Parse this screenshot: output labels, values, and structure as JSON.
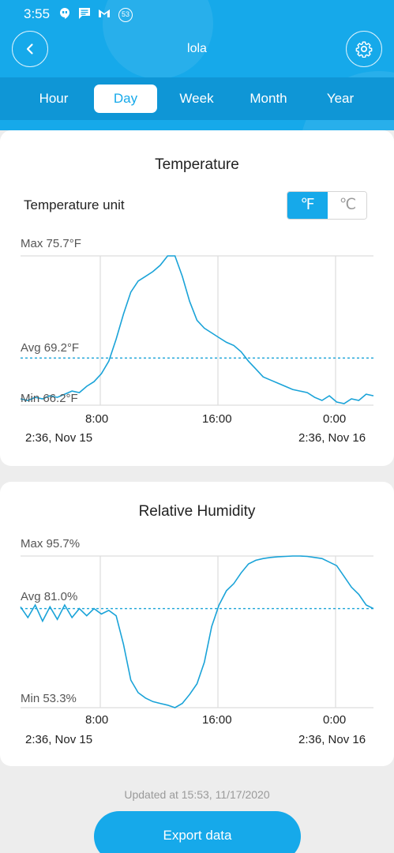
{
  "status_bar": {
    "time": "3:55",
    "icons": [
      "hangouts-icon",
      "message-icon",
      "gmail-icon"
    ],
    "notification_count": "53"
  },
  "header": {
    "title": "lola",
    "back_icon": "chevron-left-icon",
    "settings_icon": "gear-icon"
  },
  "tabs": [
    {
      "label": "Hour",
      "active": false
    },
    {
      "label": "Day",
      "active": true
    },
    {
      "label": "Week",
      "active": false
    },
    {
      "label": "Month",
      "active": false
    },
    {
      "label": "Year",
      "active": false
    }
  ],
  "temperature_card": {
    "title": "Temperature",
    "unit_label": "Temperature unit",
    "unit_fahrenheit": "℉",
    "unit_celsius": "℃",
    "selected_unit": "℉",
    "max_label": "Max 75.7°F",
    "avg_label": "Avg 69.2°F",
    "min_label": "Min 66.2°F",
    "ticks": [
      "8:00",
      "16:00",
      "0:00"
    ],
    "start_label": "2:36, Nov 15",
    "end_label": "2:36, Nov 16"
  },
  "humidity_card": {
    "title": "Relative Humidity",
    "max_label": "Max 95.7%",
    "avg_label": "Avg 81.0%",
    "min_label": "Min 53.3%",
    "ticks": [
      "8:00",
      "16:00",
      "0:00"
    ],
    "start_label": "2:36, Nov 15",
    "end_label": "2:36, Nov 16"
  },
  "footer": {
    "updated_text": "Updated at 15:53, 11/17/2020",
    "export_label": "Export data"
  },
  "colors": {
    "accent": "#16a9ea",
    "tabbar": "#0f96d6",
    "line": "#1aa3d8"
  },
  "chart_data": [
    {
      "type": "line",
      "title": "Temperature",
      "xlabel": "",
      "ylabel": "",
      "x_ticks": [
        "8:00",
        "16:00",
        "0:00"
      ],
      "x_range": [
        "2:36, Nov 15",
        "2:36, Nov 16"
      ],
      "ylim": [
        66.2,
        75.7
      ],
      "avg": 69.2,
      "grid": true,
      "series": [
        {
          "x_hours": [
            0.0,
            0.5,
            1.0,
            1.5,
            2.0,
            2.5,
            3.0,
            3.5,
            4.0,
            4.5,
            5.0,
            5.5,
            6.0,
            6.5,
            7.0,
            7.5,
            8.0,
            8.5,
            9.0,
            9.5,
            10.0,
            10.5,
            11.0,
            11.5,
            12.0,
            12.5,
            13.0,
            13.5,
            14.0,
            14.5,
            15.0,
            15.5,
            16.0,
            16.5,
            17.0,
            17.5,
            18.0,
            18.5,
            19.0,
            19.5,
            20.0,
            20.5,
            21.0,
            21.5,
            22.0,
            22.5,
            23.0,
            23.5,
            24.0
          ],
          "values": [
            66.6,
            66.5,
            66.7,
            66.6,
            66.8,
            66.7,
            66.9,
            67.1,
            67.0,
            67.4,
            67.7,
            68.2,
            69.0,
            70.4,
            72.0,
            73.4,
            74.1,
            74.4,
            74.7,
            75.1,
            75.7,
            75.7,
            74.4,
            72.8,
            71.6,
            71.1,
            70.8,
            70.5,
            70.2,
            70.0,
            69.6,
            69.0,
            68.5,
            68.0,
            67.8,
            67.6,
            67.4,
            67.2,
            67.1,
            67.0,
            66.7,
            66.5,
            66.8,
            66.4,
            66.3,
            66.6,
            66.5,
            66.9,
            66.8
          ]
        }
      ]
    },
    {
      "type": "line",
      "title": "Relative Humidity",
      "xlabel": "",
      "ylabel": "",
      "x_ticks": [
        "8:00",
        "16:00",
        "0:00"
      ],
      "x_range": [
        "2:36, Nov 15",
        "2:36, Nov 16"
      ],
      "ylim": [
        53.3,
        95.7
      ],
      "avg": 81.0,
      "grid": true,
      "series": [
        {
          "x_hours": [
            0.0,
            0.5,
            1.0,
            1.5,
            2.0,
            2.5,
            3.0,
            3.5,
            4.0,
            4.5,
            5.0,
            5.5,
            6.0,
            6.5,
            7.0,
            7.5,
            8.0,
            8.5,
            9.0,
            9.5,
            10.0,
            10.5,
            11.0,
            11.5,
            12.0,
            12.5,
            13.0,
            13.5,
            14.0,
            14.5,
            15.0,
            15.5,
            16.0,
            16.5,
            17.0,
            17.5,
            18.0,
            18.5,
            19.0,
            19.5,
            20.0,
            20.5,
            21.0,
            21.5,
            22.0,
            22.5,
            23.0,
            23.5,
            24.0
          ],
          "values": [
            81.5,
            78.5,
            82.0,
            77.5,
            81.5,
            78.0,
            82.0,
            78.5,
            81.0,
            79.0,
            81.0,
            79.5,
            80.5,
            79.0,
            71.0,
            61.0,
            57.5,
            56.0,
            55.0,
            54.5,
            54.0,
            53.3,
            54.5,
            57.0,
            60.0,
            66.0,
            76.0,
            82.0,
            86.0,
            88.0,
            91.0,
            93.5,
            94.5,
            95.0,
            95.3,
            95.5,
            95.6,
            95.7,
            95.7,
            95.6,
            95.3,
            95.0,
            94.0,
            93.0,
            90.0,
            87.0,
            85.0,
            82.0,
            81.0
          ]
        }
      ]
    }
  ]
}
